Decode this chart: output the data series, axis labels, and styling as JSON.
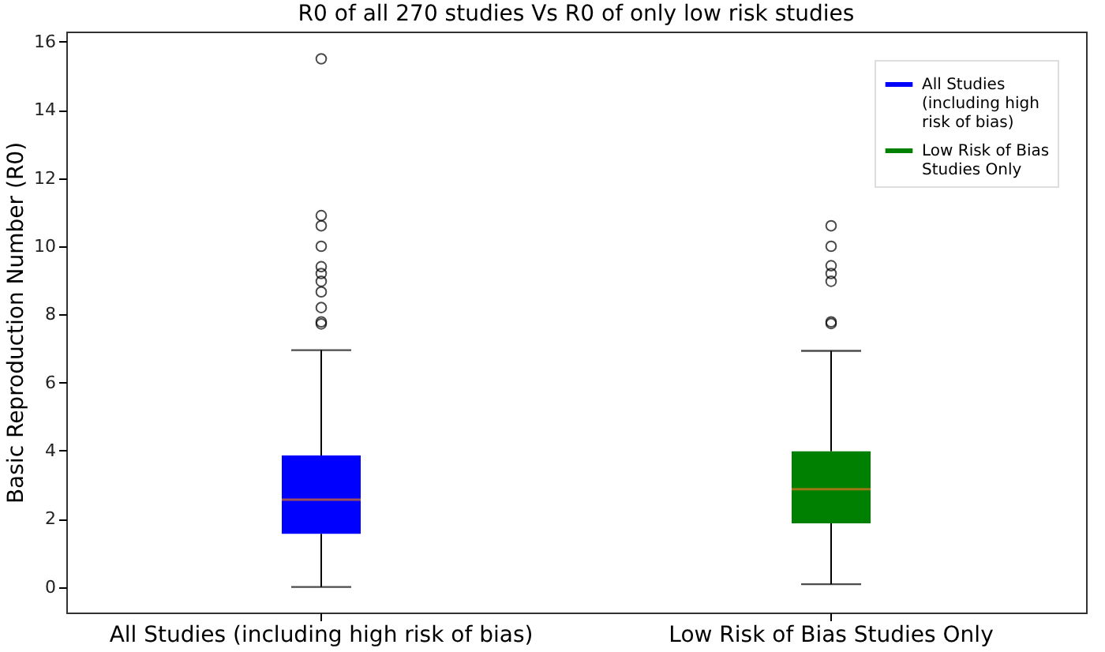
{
  "chart_data": {
    "type": "box",
    "title": "R0 of all 270 studies Vs R0 of only low risk studies",
    "ylabel": "Basic Reproduction Number (R0)",
    "categories": [
      "All Studies (including high risk of bias)",
      "Low Risk of Bias Studies Only"
    ],
    "series": [
      {
        "name": "All Studies (including high risk of bias)",
        "color": "#0000ff",
        "x": [
          "All Studies (including high risk of bias)"
        ],
        "boxes": [
          {
            "low": 0,
            "q1": 1.56,
            "median": 2.56,
            "q3": 3.86,
            "high": 6.95,
            "outliers": [
              15.5,
              10.9,
              10.6,
              10.0,
              9.4,
              9.2,
              8.97,
              8.66,
              8.2,
              7.78,
              7.72
            ]
          }
        ]
      },
      {
        "name": "Low Risk of Bias Studies Only",
        "color": "#008000",
        "x": [
          "Low Risk of Bias Studies Only"
        ],
        "boxes": [
          {
            "low": 0.08,
            "q1": 1.87,
            "median": 2.87,
            "q3": 3.98,
            "high": 6.93,
            "outliers": [
              10.6,
              10.0,
              9.43,
              9.2,
              8.97,
              7.78,
              7.73
            ]
          }
        ]
      }
    ],
    "ylim": [
      -0.75,
      16.3
    ],
    "yticks": [
      0,
      2,
      4,
      6,
      8,
      10,
      12,
      14,
      16
    ],
    "legend": "top right",
    "grid": false
  }
}
